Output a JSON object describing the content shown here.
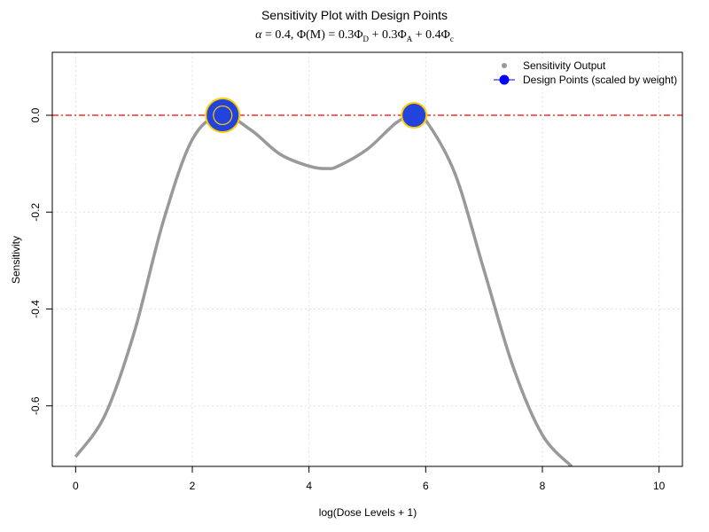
{
  "chart_data": {
    "type": "line",
    "title": "Sensitivity Plot with Design Points",
    "subtitle": "α = 0.4, Φ(M) = 0.3Φ_D + 0.3Φ_A + 0.4Φ_c",
    "xlabel": "log(Dose Levels + 1)",
    "ylabel": "Sensitivity",
    "xlim": [
      -0.4,
      10.4
    ],
    "ylim": [
      -0.725,
      0.13
    ],
    "xticks": [
      0,
      2,
      4,
      6,
      8,
      10
    ],
    "yticks": [
      0.0,
      -0.2,
      -0.4,
      -0.6
    ],
    "grid": true,
    "legend_position": "top-right",
    "reference_line": {
      "y": 0.0,
      "color": "#ff0000",
      "style": "dashed"
    },
    "series": [
      {
        "name": "Sensitivity Output",
        "color": "#999999",
        "x": [
          0,
          0.5,
          1.0,
          1.5,
          2.0,
          2.5,
          3.0,
          3.5,
          4.0,
          4.3,
          4.5,
          5.0,
          5.5,
          5.8,
          6.0,
          6.5,
          7.0,
          7.5,
          8.0,
          8.5
        ],
        "y": [
          -0.705,
          -0.62,
          -0.45,
          -0.22,
          -0.05,
          0.0,
          -0.03,
          -0.08,
          -0.105,
          -0.11,
          -0.105,
          -0.07,
          -0.015,
          0.0,
          -0.01,
          -0.12,
          -0.32,
          -0.52,
          -0.66,
          -0.725
        ]
      },
      {
        "name": "Design Points (scaled by weight)",
        "color": "#2244dd",
        "edge_color": "#ffcc00",
        "points": [
          {
            "x": 2.52,
            "y": 0.0,
            "weight": 0.6
          },
          {
            "x": 5.8,
            "y": 0.0,
            "weight": 0.4
          }
        ]
      }
    ]
  },
  "legend": {
    "items": [
      "Sensitivity Output",
      "Design Points (scaled by weight)"
    ]
  }
}
